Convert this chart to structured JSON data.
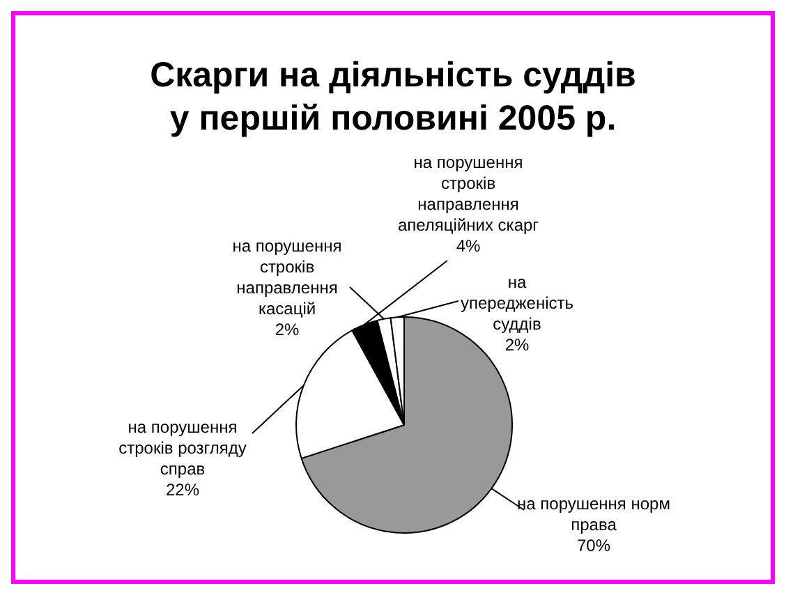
{
  "chart_data": {
    "type": "pie",
    "title": "Скарги на діяльність суддів у першій половині 2005 р.",
    "categories": [
      "на порушення норм права",
      "на порушення строків розгляду справ",
      "на порушення строків направлення апеляційних скарг",
      "на порушення строків направлення касацій",
      "на упередженість суддів"
    ],
    "values": [
      70,
      22,
      4,
      2,
      2
    ],
    "value_labels": [
      "70%",
      "22%",
      "4%",
      "2%",
      "2%"
    ],
    "colors": [
      "#999999",
      "#ffffff",
      "#000000",
      "#ffffff",
      "#ffffff"
    ],
    "legend": false
  }
}
